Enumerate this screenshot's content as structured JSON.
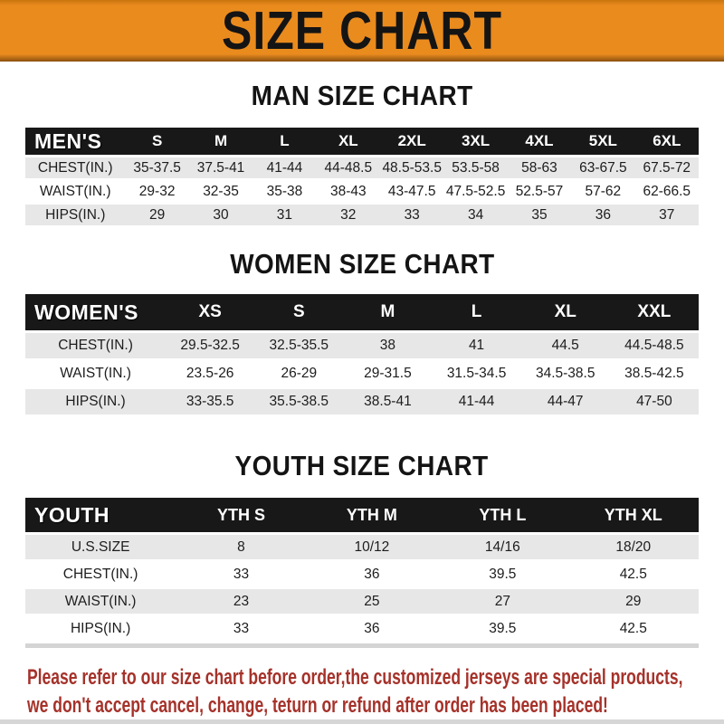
{
  "banner": {
    "title": "SIZE CHART"
  },
  "colors": {
    "banner_orange": "#EA8B1E",
    "table_header_black": "#181818",
    "row_gray": "#E7E7E7",
    "note_red": "#A5322A"
  },
  "sections": [
    {
      "heading": "MAN SIZE CHART",
      "corner_label": "MEN'S",
      "columns": [
        "S",
        "M",
        "L",
        "XL",
        "2XL",
        "3XL",
        "4XL",
        "5XL",
        "6XL"
      ],
      "rows": [
        {
          "label": "CHEST(IN.)",
          "values": [
            "35-37.5",
            "37.5-41",
            "41-44",
            "44-48.5",
            "48.5-53.5",
            "53.5-58",
            "58-63",
            "63-67.5",
            "67.5-72"
          ]
        },
        {
          "label": "WAIST(IN.)",
          "values": [
            "29-32",
            "32-35",
            "35-38",
            "38-43",
            "43-47.5",
            "47.5-52.5",
            "52.5-57",
            "57-62",
            "62-66.5"
          ]
        },
        {
          "label": "HIPS(IN.)",
          "values": [
            "29",
            "30",
            "31",
            "32",
            "33",
            "34",
            "35",
            "36",
            "37"
          ]
        }
      ]
    },
    {
      "heading": "WOMEN SIZE CHART",
      "corner_label": "WOMEN'S",
      "columns": [
        "XS",
        "S",
        "M",
        "L",
        "XL",
        "XXL"
      ],
      "rows": [
        {
          "label": "CHEST(IN.)",
          "values": [
            "29.5-32.5",
            "32.5-35.5",
            "38",
            "41",
            "44.5",
            "44.5-48.5"
          ]
        },
        {
          "label": "WAIST(IN.)",
          "values": [
            "23.5-26",
            "26-29",
            "29-31.5",
            "31.5-34.5",
            "34.5-38.5",
            "38.5-42.5"
          ]
        },
        {
          "label": "HIPS(IN.)",
          "values": [
            "33-35.5",
            "35.5-38.5",
            "38.5-41",
            "41-44",
            "44-47",
            "47-50"
          ]
        }
      ]
    },
    {
      "heading": "YOUTH SIZE CHART",
      "corner_label": "YOUTH",
      "columns": [
        "YTH S",
        "YTH M",
        "YTH L",
        "YTH XL"
      ],
      "rows": [
        {
          "label": "U.S.SIZE",
          "values": [
            "8",
            "10/12",
            "14/16",
            "18/20"
          ]
        },
        {
          "label": "CHEST(IN.)",
          "values": [
            "33",
            "36",
            "39.5",
            "42.5"
          ]
        },
        {
          "label": "WAIST(IN.)",
          "values": [
            "23",
            "25",
            "27",
            "29"
          ]
        },
        {
          "label": "HIPS(IN.)",
          "values": [
            "33",
            "36",
            "39.5",
            "42.5"
          ]
        }
      ]
    }
  ],
  "footnote": {
    "line1": "Please refer to our size chart before order,the customized jerseys are special products,",
    "line2": "we don't accept cancel, change, teturn or refund after order has been placed!"
  },
  "chart_data": [
    {
      "type": "table",
      "title": "MAN SIZE CHART",
      "columns": [
        "MEN'S",
        "S",
        "M",
        "L",
        "XL",
        "2XL",
        "3XL",
        "4XL",
        "5XL",
        "6XL"
      ],
      "rows": [
        [
          "CHEST(IN.)",
          "35-37.5",
          "37.5-41",
          "41-44",
          "44-48.5",
          "48.5-53.5",
          "53.5-58",
          "58-63",
          "63-67.5",
          "67.5-72"
        ],
        [
          "WAIST(IN.)",
          "29-32",
          "32-35",
          "35-38",
          "38-43",
          "43-47.5",
          "47.5-52.5",
          "52.5-57",
          "57-62",
          "62-66.5"
        ],
        [
          "HIPS(IN.)",
          "29",
          "30",
          "31",
          "32",
          "33",
          "34",
          "35",
          "36",
          "37"
        ]
      ]
    },
    {
      "type": "table",
      "title": "WOMEN SIZE CHART",
      "columns": [
        "WOMEN'S",
        "XS",
        "S",
        "M",
        "L",
        "XL",
        "XXL"
      ],
      "rows": [
        [
          "CHEST(IN.)",
          "29.5-32.5",
          "32.5-35.5",
          "38",
          "41",
          "44.5",
          "44.5-48.5"
        ],
        [
          "WAIST(IN.)",
          "23.5-26",
          "26-29",
          "29-31.5",
          "31.5-34.5",
          "34.5-38.5",
          "38.5-42.5"
        ],
        [
          "HIPS(IN.)",
          "33-35.5",
          "35.5-38.5",
          "38.5-41",
          "41-44",
          "44-47",
          "47-50"
        ]
      ]
    },
    {
      "type": "table",
      "title": "YOUTH SIZE CHART",
      "columns": [
        "YOUTH",
        "YTH S",
        "YTH M",
        "YTH L",
        "YTH XL"
      ],
      "rows": [
        [
          "U.S.SIZE",
          "8",
          "10/12",
          "14/16",
          "18/20"
        ],
        [
          "CHEST(IN.)",
          "33",
          "36",
          "39.5",
          "42.5"
        ],
        [
          "WAIST(IN.)",
          "23",
          "25",
          "27",
          "29"
        ],
        [
          "HIPS(IN.)",
          "33",
          "36",
          "39.5",
          "42.5"
        ]
      ]
    }
  ]
}
